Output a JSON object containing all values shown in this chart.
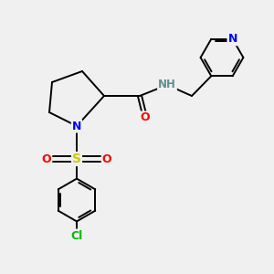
{
  "background_color": "#f0f0f0",
  "bond_color": "#000000",
  "atom_colors": {
    "N": "#0000ff",
    "O": "#ff0000",
    "S": "#cccc00",
    "Cl": "#00bb00",
    "H": "#5f8f8f",
    "C": "#000000"
  },
  "font_size": 9,
  "bond_width": 1.4,
  "xlim": [
    0,
    10
  ],
  "ylim": [
    0,
    10
  ]
}
